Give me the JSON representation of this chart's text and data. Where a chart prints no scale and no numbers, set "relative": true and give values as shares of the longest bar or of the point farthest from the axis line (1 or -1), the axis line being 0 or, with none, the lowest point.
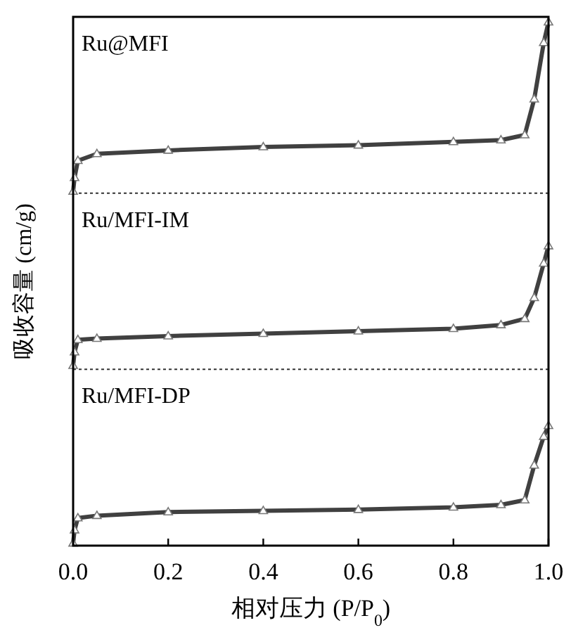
{
  "chart_data": [
    {
      "type": "line",
      "title": "Ru@MFI",
      "relative": true,
      "xlim": [
        0,
        1
      ],
      "tick_labels": false,
      "marker": "triangle",
      "x": [
        0,
        0.003,
        0.01,
        0.05,
        0.2,
        0.4,
        0.6,
        0.8,
        0.9,
        0.95,
        0.97,
        0.99,
        1.0
      ],
      "series": [
        {
          "color": "#404040",
          "values": [
            0.01,
            0.09,
            0.19,
            0.23,
            0.25,
            0.27,
            0.28,
            0.3,
            0.31,
            0.34,
            0.55,
            0.88,
            1
          ]
        }
      ]
    },
    {
      "type": "line",
      "title": "Ru/MFI-IM",
      "ylabel": "吸收容量 (cm/g)",
      "relative": true,
      "xlim": [
        0,
        1
      ],
      "tick_labels": false,
      "marker": "triangle",
      "x": [
        0,
        0.003,
        0.01,
        0.05,
        0.2,
        0.4,
        0.6,
        0.8,
        0.9,
        0.95,
        0.97,
        0.99,
        1.0
      ],
      "series": [
        {
          "color": "#404040",
          "values": [
            0.03,
            0.14,
            0.24,
            0.25,
            0.27,
            0.29,
            0.31,
            0.33,
            0.36,
            0.41,
            0.58,
            0.86,
            1
          ]
        }
      ]
    },
    {
      "type": "line",
      "title": "Ru/MFI-DP",
      "xlabel": "相对压力 (P/P$_{0}$)",
      "relative": true,
      "xlim": [
        0,
        1
      ],
      "xticks": [
        {
          "value": 0,
          "label": "0.0"
        },
        0.2,
        0.4,
        0.6,
        0.8,
        {
          "value": 1,
          "label": "1.0"
        }
      ],
      "tick_labels": "x",
      "marker": "triangle",
      "x": [
        0,
        0.003,
        0.01,
        0.05,
        0.2,
        0.4,
        0.6,
        0.8,
        0.9,
        0.95,
        0.97,
        0.99,
        1.0
      ],
      "series": [
        {
          "color": "#404040",
          "values": [
            0.02,
            0.13,
            0.23,
            0.25,
            0.28,
            0.29,
            0.3,
            0.32,
            0.34,
            0.38,
            0.67,
            0.91,
            1
          ]
        }
      ]
    }
  ]
}
